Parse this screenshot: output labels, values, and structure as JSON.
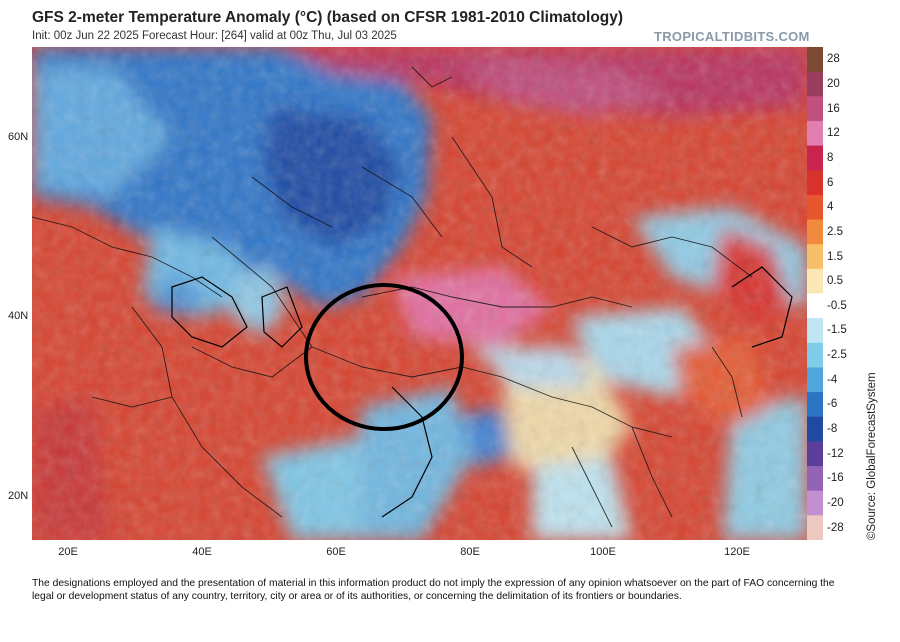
{
  "header": {
    "title": "GFS 2-meter Temperature Anomaly (°C) (based on CFSR 1981-2010 Climatology)",
    "subtitle": "Init: 00z Jun 22 2025   Forecast Hour: [264]   valid at 00z Thu, Jul 03 2025",
    "brand": "TROPICALTIDBITS.COM"
  },
  "map": {
    "latitude_labels": [
      "60N",
      "40N",
      "20N"
    ],
    "longitude_labels": [
      "20E",
      "40E",
      "60E",
      "80E",
      "100E",
      "120E"
    ],
    "highlight": "circle over Afghanistan / Pakistan / Tajikistan region"
  },
  "colorbar": {
    "labels": [
      "28",
      "20",
      "16",
      "12",
      "8",
      "6",
      "4",
      "2.5",
      "1.5",
      "0.5",
      "-0.5",
      "-1.5",
      "-2.5",
      "-4",
      "-6",
      "-8",
      "-12",
      "-16",
      "-20",
      "-28"
    ],
    "colors": [
      "#7a4b32",
      "#9a3e5f",
      "#c0507f",
      "#e07fb0",
      "#c8244e",
      "#d8322d",
      "#e8562e",
      "#f08a3c",
      "#f7bf6a",
      "#fbe7b3",
      "#ffffff",
      "#bfe6f2",
      "#7fcde8",
      "#4fa6dc",
      "#2c74c4",
      "#2049a0",
      "#5c3d9a",
      "#9364b6",
      "#c48fd0",
      "#ecc8c0"
    ]
  },
  "source_text": "©Source: GlobalForecastSystem",
  "disclaimer": "The designations employed and the presentation of material in this information product do not imply the expression of any opinion whatsoever on the part of FAO concerning the legal or development status of any country, territory, city or area or of its authorities, or concerning the delimitation of its frontiers or boundaries."
}
